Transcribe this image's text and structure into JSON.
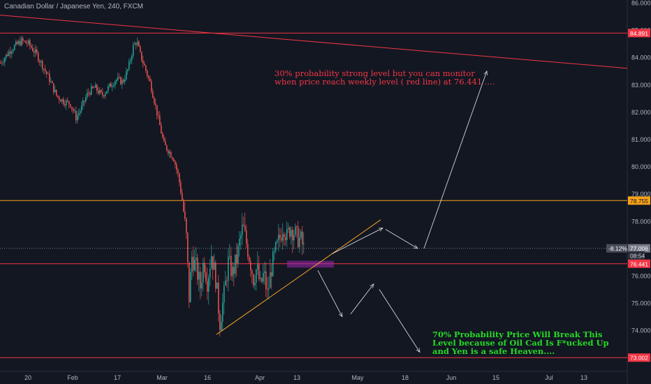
{
  "chart_title": "Canadian Dollar / Japanese Yen, 240, FXCM",
  "colors": {
    "background": "#131722",
    "candle_up": "#26a69a",
    "candle_down": "#ef5350",
    "resistance_line": "#f23645",
    "support_orange": "#f7a21b",
    "trendline": "#f5a623",
    "zone": "#9c27b0",
    "arrow": "#d1d4dc",
    "note_red": "#f23645",
    "note_green": "#26d926",
    "axis_text": "#b2b5be"
  },
  "annotations": {
    "top_note": "30% probability strong level but you can monitor\nwhen price reach weekly level ( red line) at 76.441 ....",
    "bottom_note": "70% Probability Price Will Break This\nLevel because of Oil Cad Is F*ucked Up\nand Yen is a safe Heaven...."
  },
  "chart_data": {
    "type": "candlestick",
    "title": "Canadian Dollar / Japanese Yen, 240, FXCM",
    "ylim": [
      72.8,
      86.2
    ],
    "y_ticks": [
      "86.000",
      "85.000",
      "84.000",
      "83.000",
      "82.000",
      "81.000",
      "80.000",
      "79.000",
      "78.000",
      "77.000",
      "76.000",
      "75.000",
      "74.000",
      "73.000"
    ],
    "x_ticks": [
      "20",
      "Feb",
      "17",
      "Mar",
      "16",
      "Apr",
      "13",
      "May",
      "18",
      "Jun",
      "15",
      "Jul",
      "13"
    ],
    "price_labels": [
      {
        "text": "84.891",
        "value": 84.891,
        "kind": "red"
      },
      {
        "text": "78.755",
        "value": 78.755,
        "kind": "orange"
      },
      {
        "text": "77.006",
        "value": 77.006,
        "kind": "gray",
        "change": "-8.12%"
      },
      {
        "text": "08:54",
        "value": 76.74,
        "kind": "timer"
      },
      {
        "text": "76.441",
        "value": 76.441,
        "kind": "red"
      },
      {
        "text": "73.002",
        "value": 73.002,
        "kind": "red"
      }
    ],
    "horizontal_levels": [
      {
        "value": 84.891,
        "color": "red"
      },
      {
        "value": 78.755,
        "color": "orange"
      },
      {
        "value": 77.006,
        "color": "gray-dotted"
      },
      {
        "value": 76.441,
        "color": "red"
      },
      {
        "value": 73.002,
        "color": "red"
      }
    ],
    "price_path": [
      [
        0,
        83.8
      ],
      [
        15,
        84.3
      ],
      [
        30,
        84.6
      ],
      [
        40,
        84.5
      ],
      [
        52,
        84.1
      ],
      [
        62,
        83.6
      ],
      [
        70,
        83.2
      ],
      [
        80,
        82.6
      ],
      [
        90,
        82.4
      ],
      [
        100,
        82.3
      ],
      [
        108,
        81.8
      ],
      [
        115,
        82.1
      ],
      [
        125,
        82.7
      ],
      [
        135,
        82.9
      ],
      [
        145,
        82.6
      ],
      [
        155,
        82.9
      ],
      [
        165,
        83.2
      ],
      [
        175,
        83.1
      ],
      [
        183,
        83.6
      ],
      [
        190,
        84.4
      ],
      [
        195,
        84.6
      ],
      [
        200,
        84.1
      ],
      [
        207,
        83.6
      ],
      [
        215,
        83.0
      ],
      [
        222,
        82.2
      ],
      [
        228,
        81.5
      ],
      [
        234,
        80.8
      ],
      [
        240,
        80.6
      ],
      [
        248,
        80.3
      ],
      [
        255,
        79.6
      ],
      [
        261,
        78.6
      ],
      [
        266,
        77.4
      ],
      [
        270,
        75.2
      ],
      [
        274,
        76.7
      ],
      [
        280,
        76.3
      ],
      [
        286,
        75.6
      ],
      [
        291,
        76.6
      ],
      [
        296,
        75.8
      ],
      [
        302,
        76.8
      ],
      [
        308,
        75.9
      ],
      [
        314,
        74.3
      ],
      [
        320,
        75.3
      ],
      [
        326,
        76.5
      ],
      [
        332,
        76.1
      ],
      [
        338,
        76.6
      ],
      [
        342,
        77.2
      ],
      [
        347,
        77.8
      ],
      [
        352,
        77.2
      ],
      [
        357,
        76.6
      ],
      [
        362,
        75.9
      ],
      [
        367,
        76.3
      ],
      [
        372,
        75.6
      ],
      [
        377,
        76.1
      ],
      [
        382,
        75.3
      ],
      [
        388,
        76.3
      ],
      [
        394,
        76.9
      ],
      [
        400,
        77.4
      ],
      [
        405,
        77.9
      ],
      [
        410,
        77.4
      ],
      [
        415,
        77.8
      ],
      [
        420,
        77.6
      ],
      [
        425,
        77.4
      ],
      [
        430,
        77.3
      ],
      [
        434,
        77.0
      ]
    ],
    "trendline": {
      "from": [
        310,
        73.85
      ],
      "to": [
        545,
        78.05
      ]
    },
    "descending_line": {
      "from": [
        0,
        85.55
      ],
      "to": [
        898,
        83.6
      ]
    },
    "zone": {
      "x1": 411,
      "x2": 478,
      "y1": 76.55,
      "y2": 76.3
    },
    "arrows": [
      {
        "from": [
          475,
          76.8
        ],
        "to": [
          548,
          77.75
        ]
      },
      {
        "from": [
          552,
          77.7
        ],
        "to": [
          598,
          77.0
        ]
      },
      {
        "from": [
          607,
          77.0
        ],
        "to": [
          697,
          83.5
        ]
      },
      {
        "from": [
          455,
          76.2
        ],
        "to": [
          490,
          74.5
        ]
      },
      {
        "from": [
          502,
          74.6
        ],
        "to": [
          535,
          75.7
        ]
      },
      {
        "from": [
          543,
          75.5
        ],
        "to": [
          601,
          73.2
        ]
      }
    ]
  }
}
